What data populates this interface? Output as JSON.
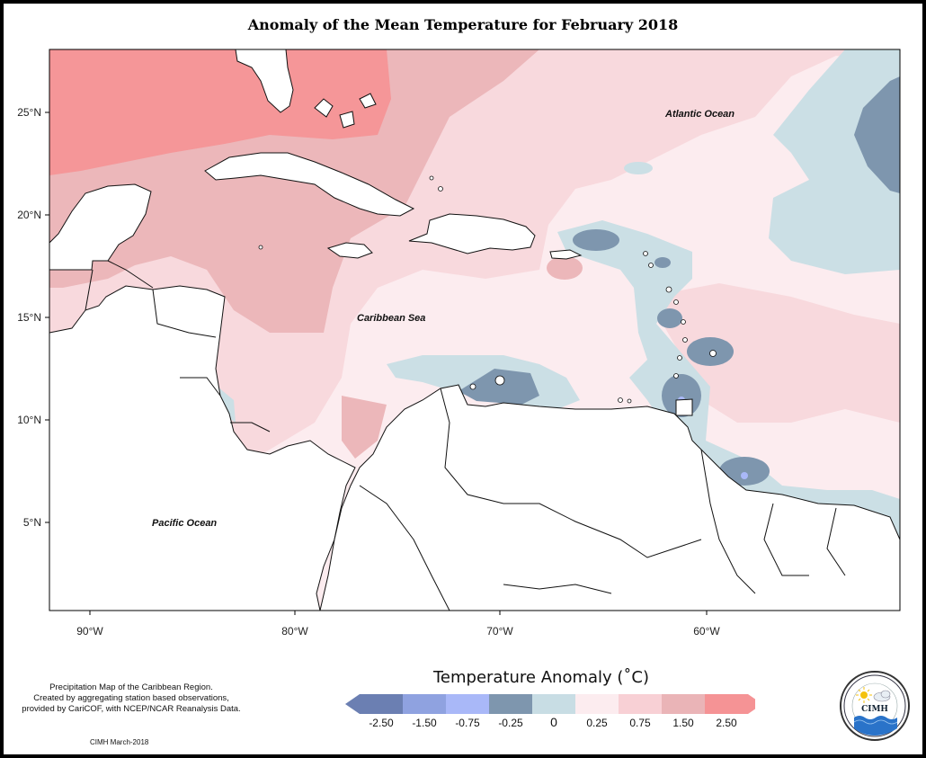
{
  "title": "Anomaly of the Mean Temperature for February 2018",
  "axes": {
    "lat_ticks": [
      "25°N",
      "20°N",
      "15°N",
      "10°N",
      "5°N"
    ],
    "lon_ticks": [
      "90°W",
      "80°W",
      "70°W",
      "60°W"
    ]
  },
  "labels": {
    "atlantic": "Atlantic Ocean",
    "caribbean": "Caribbean Sea",
    "pacific": "Pacific Ocean"
  },
  "legend": {
    "title": "Temperature Anomaly (˚C)",
    "bins": [
      {
        "color": "#6b7fb2"
      },
      {
        "color": "#8fa2e0"
      },
      {
        "color": "#a9b8f8"
      },
      {
        "color": "#7e96ae"
      },
      {
        "color": "#c8dde4"
      },
      {
        "color": "#fcecef"
      },
      {
        "color": "#f8d0d5"
      },
      {
        "color": "#eab4b7"
      },
      {
        "color": "#f59395"
      }
    ],
    "tick_labels": [
      "-2.50",
      "-1.50",
      "-0.75",
      "-0.25",
      "0",
      "0.25",
      "0.75",
      "1.50",
      "2.50"
    ]
  },
  "footnote": [
    "Precipitation Map of the Caribbean Region.",
    "Created by aggregating station based observations,",
    "provided by CariCOF, with NCEP/NCAR Reanalysis Data."
  ],
  "credit": "CIMH March-2018",
  "logo": {
    "text": "CIMH"
  }
}
